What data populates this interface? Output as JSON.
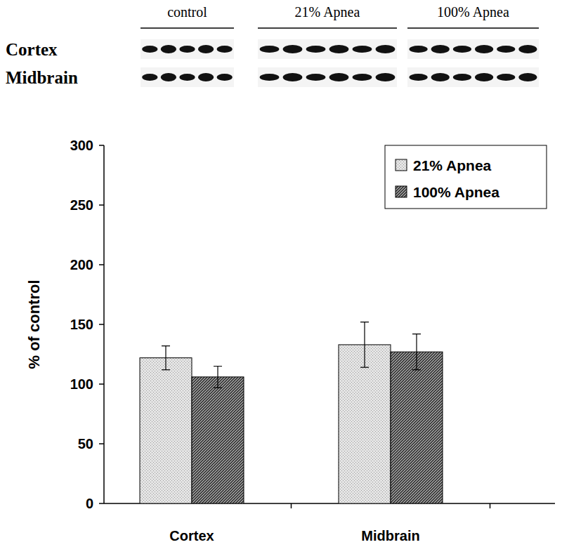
{
  "chart_data": {
    "type": "bar",
    "blot": {
      "groups": [
        "control",
        "21% Apnea",
        "100% Apnea"
      ],
      "rows": [
        "Cortex",
        "Midbrain"
      ]
    },
    "y_label": "% of control",
    "categories": [
      "Cortex",
      "Midbrain"
    ],
    "series": [
      {
        "name": "21% Apnea",
        "color": "#e4e4e4",
        "values": [
          122,
          133
        ],
        "errors": [
          10,
          19
        ]
      },
      {
        "name": "100% Apnea",
        "color": "#3a3a3a",
        "values": [
          106,
          127
        ],
        "errors": [
          9,
          15
        ]
      }
    ],
    "ylim": [
      0,
      300
    ],
    "yticks": [
      0,
      50,
      100,
      150,
      200,
      250,
      300
    ],
    "grid": false,
    "legend": "upper right"
  }
}
